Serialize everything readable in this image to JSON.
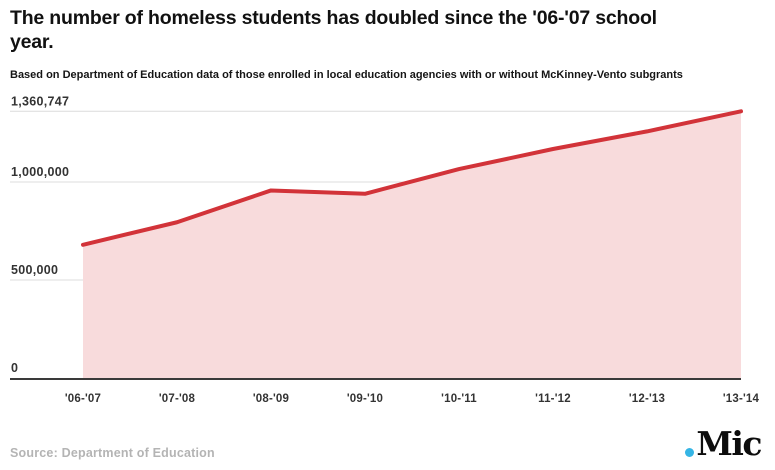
{
  "header": {
    "title": "The number of homeless students has doubled since the '06-'07 school year.",
    "title_lines": [
      "The number of homeless students has doubled since the '06-'07 school",
      "year."
    ],
    "subtitle": "Based on Department of Education data of those enrolled in local education agencies with or without McKinney-Vento subgrants"
  },
  "chart_data": {
    "type": "area",
    "title": "The number of homeless students has doubled since the '06-'07 school year.",
    "subtitle": "Based on Department of Education data of those enrolled in local education agencies with or without McKinney-Vento subgrants",
    "categories": [
      "'06-'07",
      "'07-'08",
      "'08-'09",
      "'09-'10",
      "'10-'11",
      "'11-'12",
      "'12-'13",
      "'13-'14"
    ],
    "values": [
      679724,
      794617,
      956914,
      939903,
      1065794,
      1168354,
      1258182,
      1360747
    ],
    "xlabel": "",
    "ylabel": "",
    "ylim": [
      0,
      1360747
    ],
    "yticks": [
      {
        "value": 1360747,
        "label": "1,360,747"
      },
      {
        "value": 1000000,
        "label": "1,000,000"
      },
      {
        "value": 500000,
        "label": "500,000"
      },
      {
        "value": 0,
        "label": "0"
      }
    ],
    "grid": true,
    "legend_position": "none",
    "colors": {
      "line": "#d23339",
      "fill": "#f8dbdc",
      "gridline": "#dcdcdc",
      "baseline": "#3a3a3a",
      "tick_text": "#333333"
    }
  },
  "footer": {
    "source": "Source: Department of Education",
    "logo": {
      "text": "Mic",
      "dot_color": "#35b5e5"
    }
  }
}
